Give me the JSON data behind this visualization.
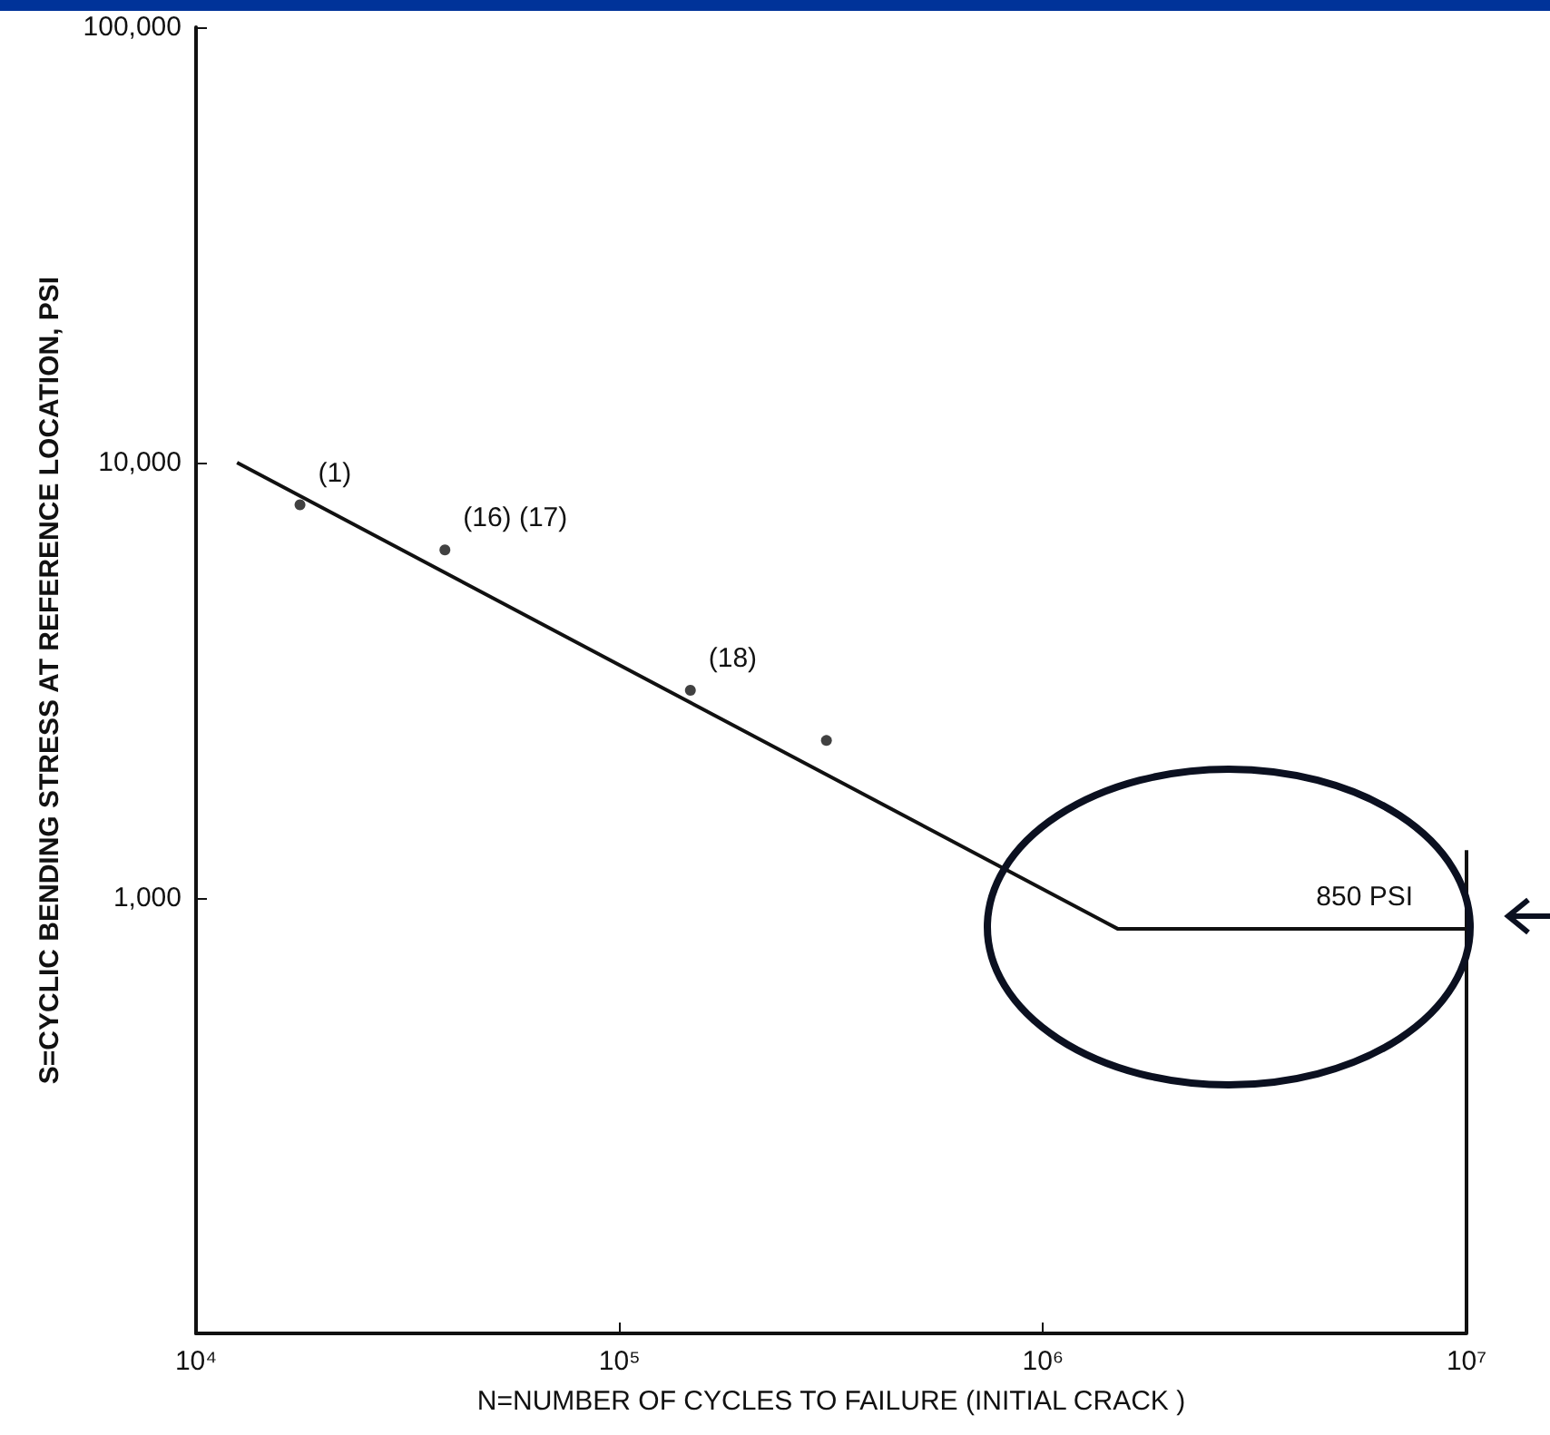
{
  "chart_data": {
    "type": "line",
    "log": "xy",
    "grid": false,
    "xlabel": "N=NUMBER OF CYCLES TO FAILURE (INITIAL CRACK )",
    "ylabel": "S=CYCLIC BENDING STRESS AT REFERENCE LOCATION, PSI",
    "xlim": [
      10000,
      10000000
    ],
    "xticks": [
      {
        "value": 10000,
        "label": "10⁴"
      },
      {
        "value": 100000,
        "label": "10⁵"
      },
      {
        "value": 1000000,
        "label": "10⁶"
      },
      {
        "value": 10000000,
        "label": "10⁷"
      }
    ],
    "ylim": [
      100,
      100000
    ],
    "yticks": [
      {
        "value": 100,
        "label": null
      },
      {
        "value": 1000,
        "label": "1,000"
      },
      {
        "value": 10000,
        "label": "10,000"
      },
      {
        "value": 100000,
        "label": "100,000"
      }
    ],
    "series": [
      {
        "color": "#111111",
        "marker": "none",
        "line_style": "solid",
        "x": [
          12500,
          1500000,
          10000000
        ],
        "values": [
          10000,
          850,
          850
        ]
      },
      {
        "type": "scatter",
        "color": "#111111",
        "marker": "circle",
        "x": [
          17600,
          38700,
          147000,
          308000
        ],
        "values": [
          8000,
          6300,
          3000,
          2300
        ]
      }
    ],
    "annotations": [
      {
        "text": "(1)",
        "x": 17600,
        "y": 8000
      },
      {
        "text": "(16) (17)",
        "x": 38700,
        "y": 6300
      },
      {
        "text": "(18)",
        "x": 147000,
        "y": 3000
      },
      {
        "text": "850 PSI",
        "x": 4000000,
        "y": 850
      }
    ]
  }
}
